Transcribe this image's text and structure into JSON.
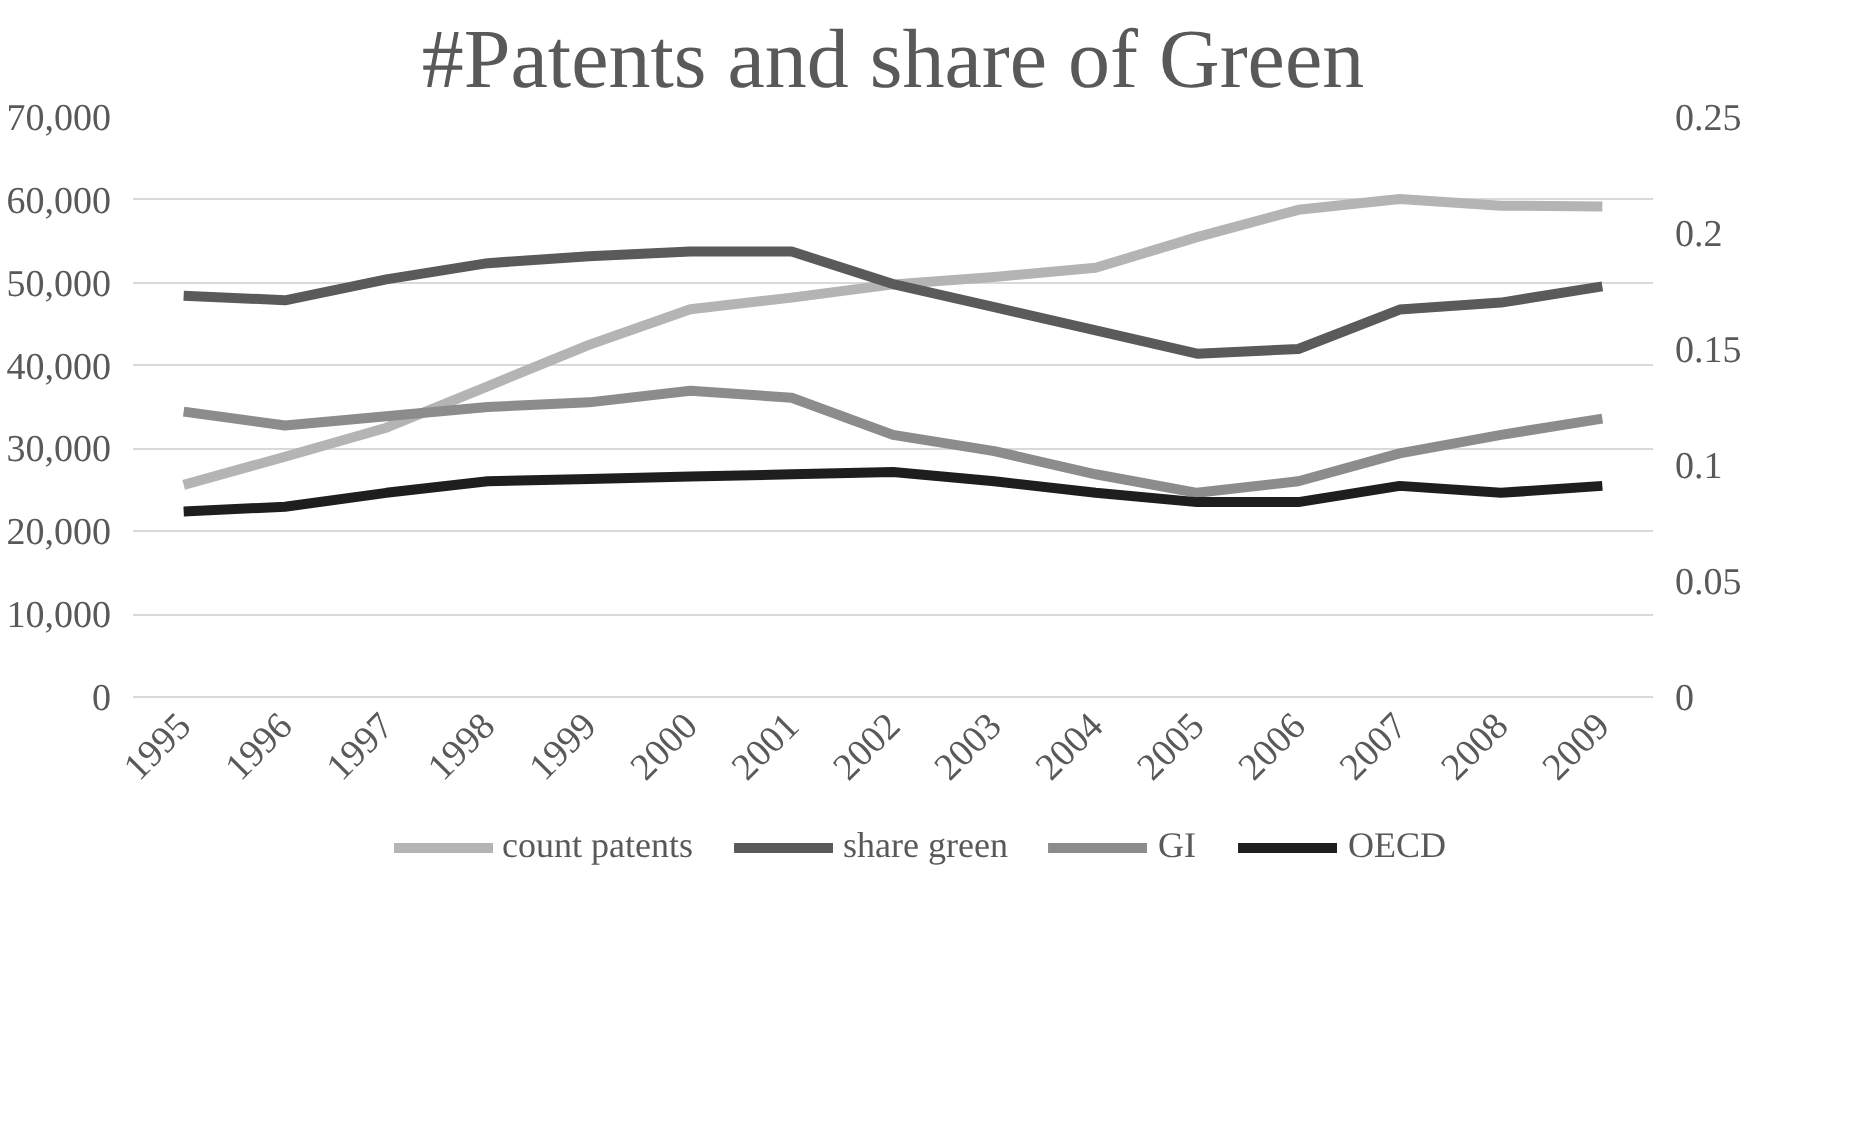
{
  "chart_data": {
    "type": "line",
    "title": "#Patents and share of Green",
    "categories": [
      "1995",
      "1996",
      "1997",
      "1998",
      "1999",
      "2000",
      "2001",
      "2002",
      "2003",
      "2004",
      "2005",
      "2006",
      "2007",
      "2008",
      "2009"
    ],
    "series": [
      {
        "name": "count patents",
        "color": "#b4b4b4",
        "values": [
          25600,
          29000,
          32500,
          37500,
          42500,
          46800,
          48200,
          49800,
          50700,
          51800,
          55500,
          58800,
          60100,
          59300,
          59200
        ]
      },
      {
        "name": "share green",
        "color": "#5a5a5a",
        "axis": "y2",
        "values": [
          0.173,
          0.171,
          0.18,
          0.187,
          0.19,
          0.192,
          0.192,
          0.178,
          0.168,
          0.158,
          0.148,
          0.15,
          0.167,
          0.17,
          0.177
        ]
      },
      {
        "name": "GI",
        "color": "#8c8c8c",
        "axis": "y2",
        "values": [
          0.123,
          0.117,
          0.121,
          0.125,
          0.127,
          0.132,
          0.129,
          0.113,
          0.106,
          0.096,
          0.088,
          0.093,
          0.105,
          0.113,
          0.12
        ]
      },
      {
        "name": "OECD",
        "color": "#1e1e1e",
        "axis": "y2",
        "values": [
          0.08,
          0.082,
          0.088,
          0.093,
          0.094,
          0.095,
          0.096,
          0.097,
          0.093,
          0.088,
          0.084,
          0.084,
          0.091,
          0.088,
          0.091
        ]
      }
    ],
    "ylim": [
      0,
      70000
    ],
    "yticks": [
      0,
      {
        "value": 10000,
        "label": "10,000"
      },
      {
        "value": 20000,
        "label": "20,000"
      },
      {
        "value": 30000,
        "label": "30,000"
      },
      {
        "value": 40000,
        "label": "40,000"
      },
      {
        "value": 50000,
        "label": "50,000"
      },
      {
        "value": 60000,
        "label": "60,000"
      },
      {
        "value": 70000,
        "label": "70,000"
      }
    ],
    "y2lim": [
      0,
      0.25
    ],
    "y2ticks": [
      0,
      0.05,
      0.1,
      0.15,
      0.2,
      0.25
    ],
    "grid": "y",
    "legend": "bottom",
    "line_style": "solid",
    "marker": "none"
  }
}
